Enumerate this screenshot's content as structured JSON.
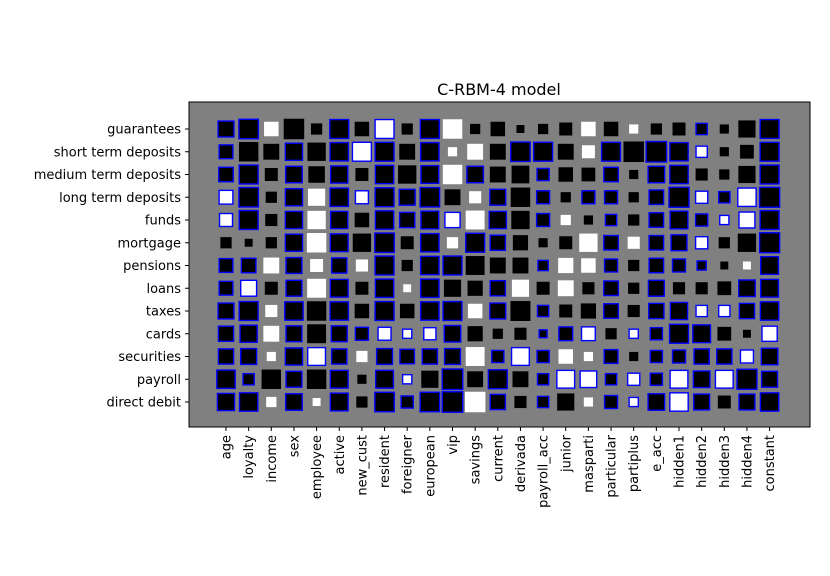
{
  "chart_data": {
    "type": "heatmap",
    "subtype": "hinton",
    "title": "C-RBM-4 model",
    "xlabel": "",
    "ylabel": "",
    "grid": false,
    "colors": {
      "background": "#808080",
      "positive": "#ffffff",
      "negative": "#000000",
      "highlight_edge": "#0000ff"
    },
    "value_range": [
      -1,
      1
    ],
    "columns": [
      "age",
      "loyalty",
      "income",
      "sex",
      "employee",
      "active",
      "new_cust",
      "resident",
      "foreigner",
      "european",
      "vip",
      "savings",
      "current",
      "derivada",
      "payroll_acc",
      "junior",
      "masparti",
      "particular",
      "partiplus",
      "e_acc",
      "hidden1",
      "hidden2",
      "hidden3",
      "hidden4",
      "constant"
    ],
    "rows": [
      "guarantees",
      "short term deposits",
      "medium term deposits",
      "long term deposits",
      "funds",
      "mortgage",
      "pensions",
      "loans",
      "taxes",
      "cards",
      "securities",
      "payroll",
      "direct debit"
    ],
    "values": [
      [
        -0.6,
        -0.9,
        0.5,
        -1.0,
        -0.3,
        -0.85,
        -0.5,
        0.85,
        -0.3,
        -0.85,
        0.9,
        -0.25,
        -0.5,
        -0.15,
        -0.25,
        -0.4,
        0.5,
        -0.5,
        0.2,
        -0.3,
        -0.4,
        -0.3,
        -0.2,
        -0.7,
        -0.85
      ],
      [
        -0.45,
        -0.9,
        -0.6,
        -0.7,
        -0.8,
        -0.8,
        0.85,
        -0.85,
        -0.6,
        -0.8,
        0.2,
        0.6,
        -0.6,
        -0.9,
        -0.85,
        -0.6,
        0.4,
        -0.85,
        -1.0,
        -1.0,
        -0.8,
        0.3,
        -0.2,
        -0.45,
        -0.85
      ],
      [
        -0.5,
        -0.85,
        -0.4,
        -0.65,
        -0.65,
        -0.7,
        -0.4,
        -0.8,
        -0.8,
        -0.75,
        0.9,
        -0.65,
        -0.6,
        -0.75,
        -0.35,
        -0.5,
        -0.45,
        -0.5,
        -0.2,
        -0.65,
        -0.8,
        -0.35,
        -0.25,
        -0.7,
        -0.85
      ],
      [
        0.45,
        -0.9,
        -0.3,
        -0.7,
        0.7,
        -0.8,
        0.4,
        -0.85,
        -0.6,
        -0.9,
        -0.6,
        0.35,
        -0.6,
        -0.9,
        -0.4,
        -0.25,
        -0.4,
        -0.4,
        -0.25,
        -0.5,
        -0.95,
        0.35,
        -0.3,
        0.8,
        -0.95
      ],
      [
        0.4,
        -0.85,
        -0.35,
        -0.7,
        0.8,
        -0.7,
        -0.5,
        -0.8,
        -0.55,
        -0.75,
        0.55,
        0.85,
        -0.7,
        -0.8,
        -0.4,
        0.25,
        -0.2,
        -0.3,
        -0.3,
        -0.5,
        -0.75,
        -0.35,
        0.2,
        0.6,
        -0.85
      ],
      [
        -0.3,
        -0.15,
        -0.3,
        -0.7,
        0.9,
        -0.75,
        -0.8,
        -0.9,
        -0.4,
        -0.8,
        0.3,
        -0.85,
        -0.55,
        -0.55,
        -0.2,
        -0.4,
        0.8,
        -0.5,
        0.35,
        -0.5,
        -0.6,
        0.35,
        -0.3,
        -0.8,
        -0.95
      ],
      [
        -0.45,
        -0.5,
        0.6,
        -0.6,
        0.4,
        -0.55,
        0.35,
        -0.85,
        -0.3,
        -0.8,
        -0.85,
        -0.85,
        -0.6,
        -0.6,
        -0.25,
        0.55,
        0.5,
        -0.4,
        -0.3,
        -0.5,
        -0.4,
        -0.2,
        -0.15,
        0.15,
        -0.75
      ],
      [
        -0.45,
        0.6,
        -0.4,
        -0.6,
        0.85,
        -0.75,
        -0.4,
        -0.8,
        0.15,
        -0.8,
        -0.7,
        -0.55,
        -0.55,
        0.7,
        -0.4,
        0.6,
        -0.35,
        -0.5,
        -0.3,
        -0.6,
        -0.35,
        -0.35,
        -0.45,
        -0.65,
        -0.75
      ],
      [
        -0.6,
        -0.85,
        0.35,
        -0.8,
        -0.9,
        -0.8,
        -0.5,
        -0.85,
        -0.5,
        -0.8,
        -0.85,
        0.5,
        -0.6,
        -0.95,
        -0.3,
        -0.4,
        -0.55,
        -0.5,
        -0.35,
        -0.55,
        -0.7,
        0.3,
        0.3,
        -0.55,
        -0.8
      ],
      [
        -0.55,
        -0.7,
        0.6,
        -0.6,
        -0.85,
        -0.6,
        -0.4,
        0.4,
        0.2,
        0.35,
        -0.65,
        -0.55,
        -0.25,
        -0.35,
        -0.15,
        -0.45,
        0.45,
        -0.3,
        0.2,
        -0.35,
        -0.85,
        -0.75,
        -0.45,
        -0.15,
        0.55
      ],
      [
        -0.55,
        -0.6,
        0.2,
        -0.7,
        0.75,
        -0.55,
        0.3,
        -0.6,
        -0.5,
        -0.55,
        -0.6,
        0.85,
        -0.35,
        0.75,
        -0.35,
        0.5,
        0.2,
        -0.45,
        -0.2,
        -0.35,
        -0.4,
        -0.55,
        -0.55,
        0.4,
        -0.65
      ],
      [
        -0.8,
        -0.3,
        -0.9,
        -0.6,
        -0.9,
        -0.75,
        -0.2,
        -0.75,
        0.2,
        -0.7,
        -1.0,
        -0.6,
        -0.85,
        -0.6,
        -0.3,
        0.75,
        0.65,
        -0.3,
        0.35,
        -0.35,
        0.75,
        -0.65,
        0.75,
        -0.95,
        -0.6
      ],
      [
        -0.7,
        -0.8,
        0.25,
        -0.65,
        0.15,
        -0.75,
        -0.3,
        -0.9,
        -0.35,
        -0.9,
        -1.0,
        1.0,
        -0.55,
        -0.35,
        -0.3,
        -0.7,
        0.2,
        -0.4,
        0.2,
        -0.65,
        0.8,
        -0.6,
        -0.4,
        -0.6,
        -0.8
      ]
    ],
    "blue_edged": [
      [
        0,
        1,
        5,
        7,
        9,
        21,
        24
      ],
      [
        0,
        3,
        5,
        6,
        7,
        9,
        13,
        14,
        17,
        19,
        20,
        21,
        24
      ],
      [
        0,
        1,
        3,
        5,
        7,
        9,
        11,
        14,
        17,
        19,
        20,
        24
      ],
      [
        0,
        1,
        3,
        5,
        6,
        7,
        8,
        9,
        12,
        14,
        16,
        17,
        19,
        20,
        21,
        22,
        23,
        24
      ],
      [
        0,
        1,
        3,
        5,
        7,
        8,
        9,
        10,
        12,
        14,
        17,
        19,
        20,
        21,
        22,
        23,
        24
      ],
      [
        3,
        5,
        7,
        9,
        11,
        12,
        17,
        19,
        20,
        21,
        24
      ],
      [
        0,
        1,
        3,
        5,
        7,
        9,
        10,
        14,
        17,
        19,
        20,
        21,
        24
      ],
      [
        0,
        1,
        3,
        5,
        7,
        9,
        12,
        17,
        19,
        23,
        24
      ],
      [
        0,
        1,
        3,
        5,
        7,
        9,
        10,
        12,
        14,
        17,
        19,
        20,
        21,
        22,
        23,
        24
      ],
      [
        0,
        1,
        3,
        5,
        6,
        7,
        8,
        9,
        10,
        14,
        15,
        16,
        18,
        19,
        20,
        21,
        24
      ],
      [
        0,
        1,
        3,
        4,
        5,
        7,
        8,
        9,
        10,
        12,
        13,
        14,
        17,
        19,
        20,
        21,
        22,
        23,
        24
      ],
      [
        0,
        1,
        3,
        5,
        7,
        8,
        10,
        12,
        14,
        15,
        16,
        17,
        18,
        19,
        20,
        21,
        22,
        23,
        24
      ],
      [
        0,
        1,
        3,
        5,
        7,
        8,
        9,
        10,
        12,
        14,
        17,
        18,
        19,
        20,
        21,
        23,
        24
      ]
    ]
  }
}
